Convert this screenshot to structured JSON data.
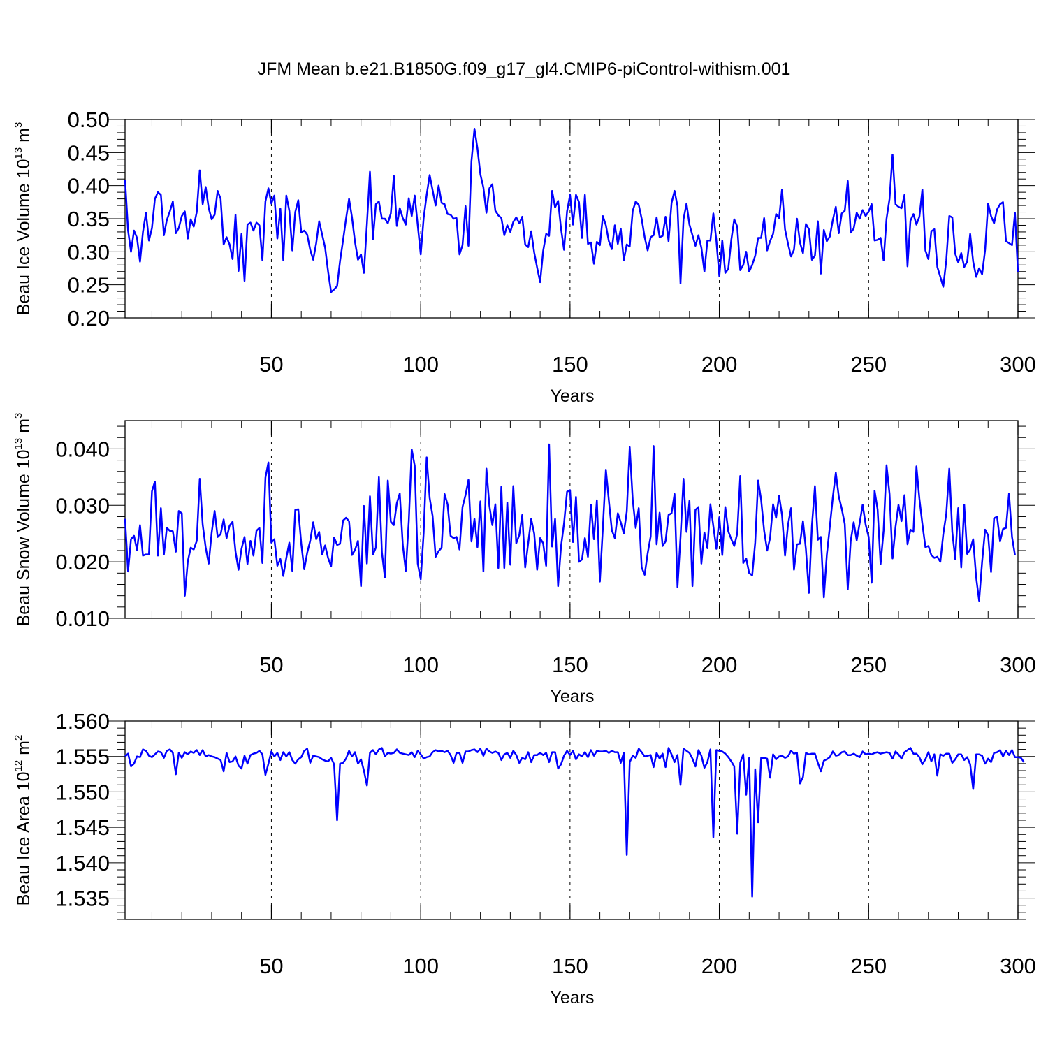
{
  "chart_data": {
    "title": "JFM Mean b.e21.B1850G.f09_g17_gl4.CMIP6-piControl-withism.001",
    "type": "line",
    "line_color": "#0000ff",
    "grid": "dashed vertical lines at x = 50, 100, 150, 200, 250",
    "panels": [
      {
        "type": "line",
        "ylabel_main": "Beau Ice Volume 10",
        "ylabel_exp": "13",
        "ylabel_unit": " m",
        "ylabel_unit_exp": "3",
        "xlabel": "Years",
        "xlim": [
          1,
          300
        ],
        "ylim": [
          0.2,
          0.5
        ],
        "yticks": [
          0.2,
          0.25,
          0.3,
          0.35,
          0.4,
          0.45,
          0.5
        ],
        "ytick_labels": [
          "0.20",
          "0.25",
          "0.30",
          "0.35",
          "0.40",
          "0.45",
          "0.50"
        ],
        "xticks": [
          50,
          100,
          150,
          200,
          250,
          300
        ],
        "xtick_labels": [
          "50",
          "100",
          "150",
          "200",
          "250",
          "300"
        ],
        "x_start": 1,
        "values": [
          0.409,
          0.332,
          0.3,
          0.332,
          0.321,
          0.285,
          0.33,
          0.359,
          0.317,
          0.336,
          0.38,
          0.39,
          0.386,
          0.325,
          0.348,
          0.361,
          0.376,
          0.328,
          0.336,
          0.354,
          0.361,
          0.32,
          0.349,
          0.338,
          0.36,
          0.423,
          0.372,
          0.398,
          0.366,
          0.349,
          0.356,
          0.392,
          0.38,
          0.311,
          0.322,
          0.311,
          0.289,
          0.356,
          0.271,
          0.327,
          0.256,
          0.341,
          0.344,
          0.332,
          0.344,
          0.34,
          0.287,
          0.376,
          0.396,
          0.373,
          0.385,
          0.32,
          0.365,
          0.287,
          0.385,
          0.362,
          0.302,
          0.36,
          0.378,
          0.329,
          0.332,
          0.326,
          0.303,
          0.288,
          0.313,
          0.346,
          0.326,
          0.306,
          0.27,
          0.239,
          0.243,
          0.248,
          0.286,
          0.317,
          0.35,
          0.38,
          0.352,
          0.315,
          0.288,
          0.296,
          0.268,
          0.342,
          0.421,
          0.319,
          0.372,
          0.376,
          0.35,
          0.35,
          0.343,
          0.358,
          0.415,
          0.339,
          0.366,
          0.351,
          0.341,
          0.381,
          0.354,
          0.385,
          0.34,
          0.296,
          0.351,
          0.386,
          0.416,
          0.393,
          0.37,
          0.4,
          0.374,
          0.372,
          0.357,
          0.356,
          0.35,
          0.351,
          0.296,
          0.31,
          0.369,
          0.309,
          0.437,
          0.486,
          0.456,
          0.417,
          0.397,
          0.359,
          0.396,
          0.402,
          0.362,
          0.355,
          0.351,
          0.325,
          0.34,
          0.33,
          0.345,
          0.352,
          0.343,
          0.353,
          0.311,
          0.307,
          0.331,
          0.299,
          0.276,
          0.254,
          0.301,
          0.327,
          0.324,
          0.392,
          0.367,
          0.377,
          0.335,
          0.303,
          0.361,
          0.386,
          0.341,
          0.386,
          0.375,
          0.321,
          0.386,
          0.312,
          0.314,
          0.282,
          0.315,
          0.31,
          0.354,
          0.34,
          0.316,
          0.304,
          0.34,
          0.312,
          0.335,
          0.287,
          0.311,
          0.308,
          0.362,
          0.376,
          0.371,
          0.35,
          0.322,
          0.302,
          0.322,
          0.325,
          0.352,
          0.322,
          0.324,
          0.353,
          0.316,
          0.374,
          0.392,
          0.369,
          0.252,
          0.349,
          0.373,
          0.341,
          0.325,
          0.309,
          0.325,
          0.306,
          0.27,
          0.317,
          0.317,
          0.358,
          0.317,
          0.263,
          0.317,
          0.268,
          0.274,
          0.318,
          0.349,
          0.338,
          0.272,
          0.28,
          0.3,
          0.27,
          0.28,
          0.294,
          0.321,
          0.321,
          0.351,
          0.302,
          0.316,
          0.327,
          0.357,
          0.351,
          0.394,
          0.334,
          0.312,
          0.293,
          0.303,
          0.35,
          0.314,
          0.298,
          0.342,
          0.334,
          0.288,
          0.294,
          0.346,
          0.267,
          0.333,
          0.316,
          0.323,
          0.348,
          0.368,
          0.328,
          0.358,
          0.362,
          0.407,
          0.329,
          0.335,
          0.359,
          0.35,
          0.363,
          0.354,
          0.361,
          0.372,
          0.317,
          0.318,
          0.321,
          0.287,
          0.35,
          0.38,
          0.447,
          0.372,
          0.368,
          0.366,
          0.386,
          0.278,
          0.347,
          0.357,
          0.341,
          0.353,
          0.394,
          0.302,
          0.289,
          0.331,
          0.334,
          0.277,
          0.262,
          0.247,
          0.287,
          0.354,
          0.352,
          0.297,
          0.284,
          0.298,
          0.277,
          0.285,
          0.327,
          0.285,
          0.262,
          0.275,
          0.266,
          0.303,
          0.373,
          0.354,
          0.343,
          0.364,
          0.372,
          0.375,
          0.316,
          0.313,
          0.31,
          0.359,
          0.269
        ]
      },
      {
        "type": "line",
        "ylabel_main": "Beau Snow Volume 10",
        "ylabel_exp": "13",
        "ylabel_unit": " m",
        "ylabel_unit_exp": "3",
        "xlabel": "Years",
        "xlim": [
          1,
          300
        ],
        "ylim": [
          0.01,
          0.045
        ],
        "yticks": [
          0.01,
          0.02,
          0.03,
          0.04
        ],
        "ytick_labels": [
          "0.010",
          "0.020",
          "0.030",
          "0.040"
        ],
        "xticks": [
          50,
          100,
          150,
          200,
          250,
          300
        ],
        "xtick_labels": [
          "50",
          "100",
          "150",
          "200",
          "250",
          "300"
        ],
        "x_start": 1,
        "values": [
          0.0276,
          0.0183,
          0.024,
          0.0246,
          0.0221,
          0.0265,
          0.0211,
          0.0213,
          0.0213,
          0.0325,
          0.0342,
          0.0211,
          0.0295,
          0.0213,
          0.026,
          0.0255,
          0.0254,
          0.0218,
          0.029,
          0.0286,
          0.014,
          0.0201,
          0.0225,
          0.0222,
          0.0237,
          0.0347,
          0.0266,
          0.0225,
          0.0197,
          0.0252,
          0.029,
          0.0244,
          0.0249,
          0.0275,
          0.0242,
          0.0264,
          0.0271,
          0.0218,
          0.0186,
          0.0223,
          0.0244,
          0.0196,
          0.0237,
          0.0211,
          0.0255,
          0.026,
          0.0198,
          0.0349,
          0.0376,
          0.0234,
          0.024,
          0.0193,
          0.0205,
          0.0175,
          0.0207,
          0.0234,
          0.0184,
          0.0292,
          0.0293,
          0.0232,
          0.0187,
          0.0216,
          0.0237,
          0.027,
          0.024,
          0.0253,
          0.0213,
          0.0229,
          0.0207,
          0.0192,
          0.0243,
          0.023,
          0.0232,
          0.0273,
          0.0278,
          0.0272,
          0.0212,
          0.0221,
          0.0237,
          0.0157,
          0.0299,
          0.0197,
          0.0316,
          0.0213,
          0.0225,
          0.035,
          0.0217,
          0.0172,
          0.0344,
          0.0271,
          0.0265,
          0.0304,
          0.0321,
          0.023,
          0.0184,
          0.0272,
          0.0399,
          0.037,
          0.0197,
          0.0169,
          0.0251,
          0.0385,
          0.0313,
          0.0281,
          0.0209,
          0.0219,
          0.0225,
          0.032,
          0.0302,
          0.0246,
          0.0242,
          0.0244,
          0.0222,
          0.0297,
          0.0318,
          0.0345,
          0.0236,
          0.0276,
          0.0226,
          0.0307,
          0.0183,
          0.0365,
          0.0299,
          0.0265,
          0.0302,
          0.0189,
          0.0333,
          0.0189,
          0.0305,
          0.0195,
          0.0334,
          0.0233,
          0.0247,
          0.0283,
          0.019,
          0.0233,
          0.0276,
          0.025,
          0.0186,
          0.0242,
          0.0233,
          0.0193,
          0.0408,
          0.0227,
          0.0276,
          0.0157,
          0.0227,
          0.0268,
          0.0324,
          0.0327,
          0.0235,
          0.0315,
          0.02,
          0.0204,
          0.0242,
          0.0209,
          0.0301,
          0.024,
          0.0309,
          0.0165,
          0.0261,
          0.0363,
          0.0309,
          0.0256,
          0.0242,
          0.0286,
          0.027,
          0.025,
          0.0289,
          0.0403,
          0.031,
          0.026,
          0.0295,
          0.019,
          0.0177,
          0.0215,
          0.0245,
          0.0405,
          0.0231,
          0.0287,
          0.0228,
          0.0236,
          0.0283,
          0.0286,
          0.032,
          0.0155,
          0.0243,
          0.0347,
          0.0253,
          0.0308,
          0.0157,
          0.0292,
          0.0297,
          0.0197,
          0.0252,
          0.0224,
          0.0302,
          0.0263,
          0.0223,
          0.0279,
          0.0212,
          0.0297,
          0.0254,
          0.024,
          0.0228,
          0.025,
          0.0352,
          0.0198,
          0.0206,
          0.018,
          0.0176,
          0.0234,
          0.0344,
          0.031,
          0.0255,
          0.022,
          0.0242,
          0.0302,
          0.0278,
          0.0317,
          0.0283,
          0.0211,
          0.0266,
          0.0295,
          0.0186,
          0.0231,
          0.0232,
          0.0272,
          0.0222,
          0.0145,
          0.0264,
          0.0334,
          0.0239,
          0.0244,
          0.0137,
          0.0212,
          0.0262,
          0.0314,
          0.0358,
          0.0316,
          0.0294,
          0.0267,
          0.0151,
          0.0237,
          0.027,
          0.0238,
          0.0269,
          0.0301,
          0.0266,
          0.0244,
          0.0163,
          0.0326,
          0.0293,
          0.0196,
          0.0255,
          0.0371,
          0.032,
          0.0206,
          0.0262,
          0.0301,
          0.0272,
          0.0318,
          0.0231,
          0.0257,
          0.0253,
          0.0369,
          0.0312,
          0.0267,
          0.0226,
          0.0228,
          0.0212,
          0.0207,
          0.0209,
          0.02,
          0.0249,
          0.0285,
          0.0365,
          0.0253,
          0.0205,
          0.0295,
          0.019,
          0.0301,
          0.0214,
          0.0222,
          0.024,
          0.0172,
          0.0131,
          0.02,
          0.0257,
          0.0247,
          0.0182,
          0.0277,
          0.028,
          0.0236,
          0.0258,
          0.026,
          0.0321,
          0.0244,
          0.0212
        ]
      },
      {
        "type": "line",
        "ylabel_main": "Beau Ice Area 10",
        "ylabel_exp": "12",
        "ylabel_unit": " m",
        "ylabel_unit_exp": "2",
        "xlabel": "Years",
        "xlim": [
          1,
          300
        ],
        "ylim": [
          1.532,
          1.56
        ],
        "yticks": [
          1.535,
          1.54,
          1.545,
          1.55,
          1.555,
          1.56
        ],
        "ytick_labels": [
          "1.535",
          "1.540",
          "1.545",
          "1.550",
          "1.555",
          "1.560"
        ],
        "xticks": [
          50,
          100,
          150,
          200,
          250,
          300
        ],
        "xtick_labels": [
          "50",
          "100",
          "150",
          "200",
          "250",
          "300"
        ],
        "x_start": 1,
        "values": [
          1.555,
          1.5554,
          1.5536,
          1.554,
          1.555,
          1.5549,
          1.556,
          1.5558,
          1.5551,
          1.5549,
          1.5553,
          1.5557,
          1.5556,
          1.5548,
          1.5558,
          1.556,
          1.5555,
          1.5525,
          1.5555,
          1.5548,
          1.5556,
          1.5553,
          1.5557,
          1.5555,
          1.5559,
          1.5552,
          1.5559,
          1.555,
          1.5552,
          1.555,
          1.5549,
          1.5547,
          1.5545,
          1.5529,
          1.5555,
          1.5542,
          1.5543,
          1.555,
          1.5537,
          1.5533,
          1.5551,
          1.554,
          1.5552,
          1.5554,
          1.5555,
          1.5558,
          1.5553,
          1.5524,
          1.554,
          1.5557,
          1.555,
          1.5555,
          1.5545,
          1.5556,
          1.555,
          1.5556,
          1.5545,
          1.554,
          1.5546,
          1.5549,
          1.5558,
          1.5561,
          1.5541,
          1.5551,
          1.555,
          1.5549,
          1.5546,
          1.5544,
          1.5543,
          1.5548,
          1.5539,
          1.546,
          1.554,
          1.5541,
          1.5547,
          1.5558,
          1.555,
          1.5556,
          1.554,
          1.5546,
          1.553,
          1.5509,
          1.5555,
          1.5559,
          1.5553,
          1.556,
          1.5562,
          1.555,
          1.5555,
          1.5554,
          1.5555,
          1.556,
          1.5555,
          1.5554,
          1.5553,
          1.5552,
          1.5556,
          1.5549,
          1.5558,
          1.5553,
          1.5547,
          1.5549,
          1.555,
          1.5556,
          1.5559,
          1.5557,
          1.5558,
          1.5556,
          1.5558,
          1.5552,
          1.5541,
          1.5555,
          1.5555,
          1.5541,
          1.5557,
          1.5557,
          1.5559,
          1.556,
          1.5556,
          1.5561,
          1.5551,
          1.5561,
          1.5557,
          1.5555,
          1.5557,
          1.5555,
          1.5545,
          1.5553,
          1.5555,
          1.5548,
          1.5558,
          1.5552,
          1.5541,
          1.5548,
          1.5546,
          1.5556,
          1.5542,
          1.5552,
          1.5552,
          1.5555,
          1.5552,
          1.5555,
          1.5542,
          1.5556,
          1.5556,
          1.5533,
          1.5539,
          1.5551,
          1.5558,
          1.5552,
          1.5558,
          1.5546,
          1.5553,
          1.555,
          1.5556,
          1.5549,
          1.5559,
          1.5551,
          1.5558,
          1.5557,
          1.5557,
          1.5558,
          1.5555,
          1.5558,
          1.5556,
          1.5556,
          1.5541,
          1.5555,
          1.5411,
          1.5542,
          1.5551,
          1.5548,
          1.5561,
          1.5556,
          1.555,
          1.5551,
          1.5552,
          1.5535,
          1.5555,
          1.5547,
          1.5554,
          1.5535,
          1.5562,
          1.5553,
          1.5542,
          1.5552,
          1.551,
          1.5561,
          1.5558,
          1.5555,
          1.5547,
          1.5536,
          1.5559,
          1.5551,
          1.5534,
          1.5542,
          1.556,
          1.5436,
          1.5559,
          1.5558,
          1.5557,
          1.5554,
          1.5549,
          1.5543,
          1.5536,
          1.5441,
          1.5541,
          1.5553,
          1.5496,
          1.5548,
          1.5352,
          1.5532,
          1.5457,
          1.5548,
          1.5548,
          1.5547,
          1.552,
          1.5553,
          1.5546,
          1.555,
          1.5551,
          1.5548,
          1.555,
          1.5558,
          1.5554,
          1.5555,
          1.5512,
          1.5521,
          1.5555,
          1.5553,
          1.5554,
          1.5554,
          1.5541,
          1.5529,
          1.5544,
          1.5546,
          1.5549,
          1.5557,
          1.5551,
          1.5552,
          1.5556,
          1.5557,
          1.5552,
          1.5552,
          1.5554,
          1.5551,
          1.5549,
          1.5557,
          1.5553,
          1.5554,
          1.5553,
          1.5555,
          1.5556,
          1.5554,
          1.5555,
          1.5556,
          1.5555,
          1.5547,
          1.5557,
          1.5553,
          1.5547,
          1.5556,
          1.5559,
          1.5562,
          1.5554,
          1.5554,
          1.5549,
          1.5539,
          1.5546,
          1.5556,
          1.5543,
          1.5553,
          1.5523,
          1.5553,
          1.5551,
          1.5554,
          1.5554,
          1.5541,
          1.5546,
          1.5553,
          1.5553,
          1.5545,
          1.5549,
          1.5539,
          1.5504,
          1.5553,
          1.5553,
          1.5551,
          1.554,
          1.5547,
          1.5542,
          1.5555,
          1.5556,
          1.5559,
          1.555,
          1.5558,
          1.5552,
          1.5559,
          1.5549,
          1.5549,
          1.5548,
          1.5542
        ]
      }
    ]
  }
}
